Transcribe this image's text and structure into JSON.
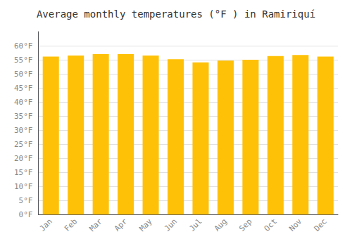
{
  "chart_data": {
    "type": "bar",
    "title": "Average monthly temperatures (°F ) in Ramiriquí",
    "categories": [
      "Jan",
      "Feb",
      "Mar",
      "Apr",
      "May",
      "Jun",
      "Jul",
      "Aug",
      "Sep",
      "Oct",
      "Nov",
      "Dec"
    ],
    "values": [
      56.1,
      56.5,
      57.0,
      57.0,
      56.5,
      55.2,
      54.1,
      54.7,
      55.0,
      56.3,
      56.7,
      56.1
    ],
    "color": "#FFC107",
    "ylim": [
      0,
      65
    ],
    "yticks": [
      {
        "value": 0,
        "label": "0°F"
      },
      {
        "value": 5,
        "label": "5°F"
      },
      {
        "value": 10,
        "label": "10°F"
      },
      {
        "value": 15,
        "label": "15°F"
      },
      {
        "value": 20,
        "label": "20°F"
      },
      {
        "value": 25,
        "label": "25°F"
      },
      {
        "value": 30,
        "label": "30°F"
      },
      {
        "value": 35,
        "label": "35°F"
      },
      {
        "value": 40,
        "label": "40°F"
      },
      {
        "value": 45,
        "label": "45°F"
      },
      {
        "value": 50,
        "label": "50°F"
      },
      {
        "value": 55,
        "label": "55°F"
      },
      {
        "value": 60,
        "label": "60°F"
      }
    ],
    "grid": true
  }
}
